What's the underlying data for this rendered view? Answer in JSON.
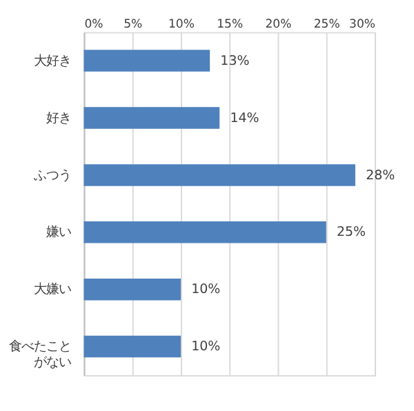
{
  "chart_data": {
    "type": "bar",
    "orientation": "horizontal",
    "categories": [
      "大好き",
      "好き",
      "ふつう",
      "嫌い",
      "大嫌い",
      "食べたことがない"
    ],
    "values": [
      13,
      14,
      28,
      25,
      10,
      10
    ],
    "value_labels": [
      "13%",
      "14%",
      "28%",
      "25%",
      "10%",
      "10%"
    ],
    "color": "#4f81bd",
    "xlim": [
      0,
      30
    ],
    "xticks": [
      {
        "value": 0,
        "label": "0%"
      },
      {
        "value": 5,
        "label": "5%"
      },
      {
        "value": 10,
        "label": "10%"
      },
      {
        "value": 15,
        "label": "15%"
      },
      {
        "value": 20,
        "label": "20%"
      },
      {
        "value": 25,
        "label": "25%"
      },
      {
        "value": 30,
        "label": "30%"
      }
    ],
    "grid": "x"
  }
}
